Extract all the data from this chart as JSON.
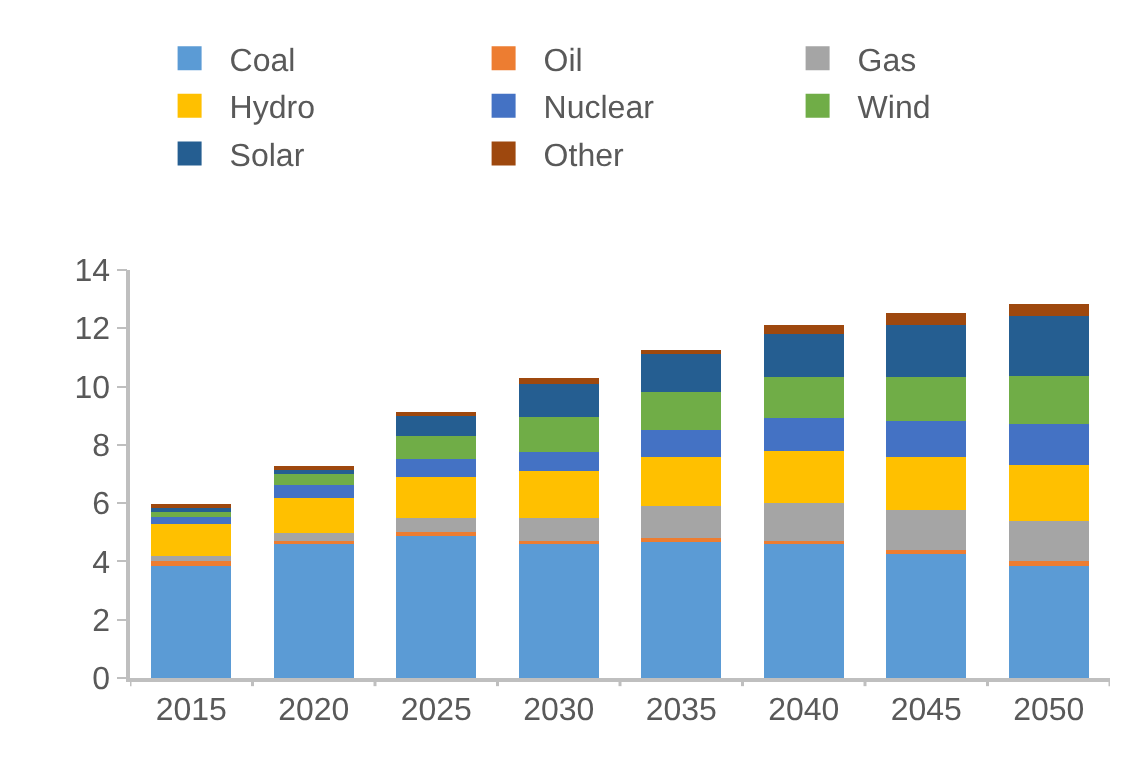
{
  "chart_data": {
    "type": "bar",
    "stacked": true,
    "categories": [
      "2015",
      "2020",
      "2025",
      "2030",
      "2035",
      "2040",
      "2045",
      "2050"
    ],
    "ylim": [
      0,
      14
    ],
    "yticks": [
      0,
      2,
      4,
      6,
      8,
      10,
      12,
      14
    ],
    "grid": false,
    "legend": "top",
    "series": [
      {
        "name": "Coal",
        "color": "#5b9bd5",
        "values": [
          3.9,
          4.6,
          4.9,
          4.6,
          4.7,
          4.6,
          4.3,
          3.9
        ]
      },
      {
        "name": "Oil",
        "color": "#ed7d31",
        "values": [
          0.1,
          0.1,
          0.1,
          0.1,
          0.1,
          0.1,
          0.1,
          0.1
        ]
      },
      {
        "name": "Gas",
        "color": "#a5a5a5",
        "values": [
          0.2,
          0.27,
          0.5,
          0.8,
          1.1,
          1.3,
          1.37,
          1.4
        ]
      },
      {
        "name": "Hydro",
        "color": "#ffc000",
        "values": [
          1.1,
          1.2,
          1.4,
          1.6,
          1.67,
          1.8,
          1.8,
          1.9
        ]
      },
      {
        "name": "Nuclear",
        "color": "#4472c4",
        "values": [
          0.22,
          0.45,
          0.62,
          0.67,
          0.94,
          1.12,
          1.24,
          1.41
        ]
      },
      {
        "name": "Wind",
        "color": "#70ad47",
        "values": [
          0.22,
          0.38,
          0.77,
          1.17,
          1.3,
          1.41,
          1.51,
          1.67
        ]
      },
      {
        "name": "Solar",
        "color": "#255e91",
        "values": [
          0.11,
          0.17,
          0.71,
          1.14,
          1.31,
          1.47,
          1.8,
          2.04
        ]
      },
      {
        "name": "Other",
        "color": "#9e480e",
        "values": [
          0.07,
          0.12,
          0.1,
          0.2,
          0.15,
          0.33,
          0.39,
          0.4
        ]
      }
    ]
  }
}
